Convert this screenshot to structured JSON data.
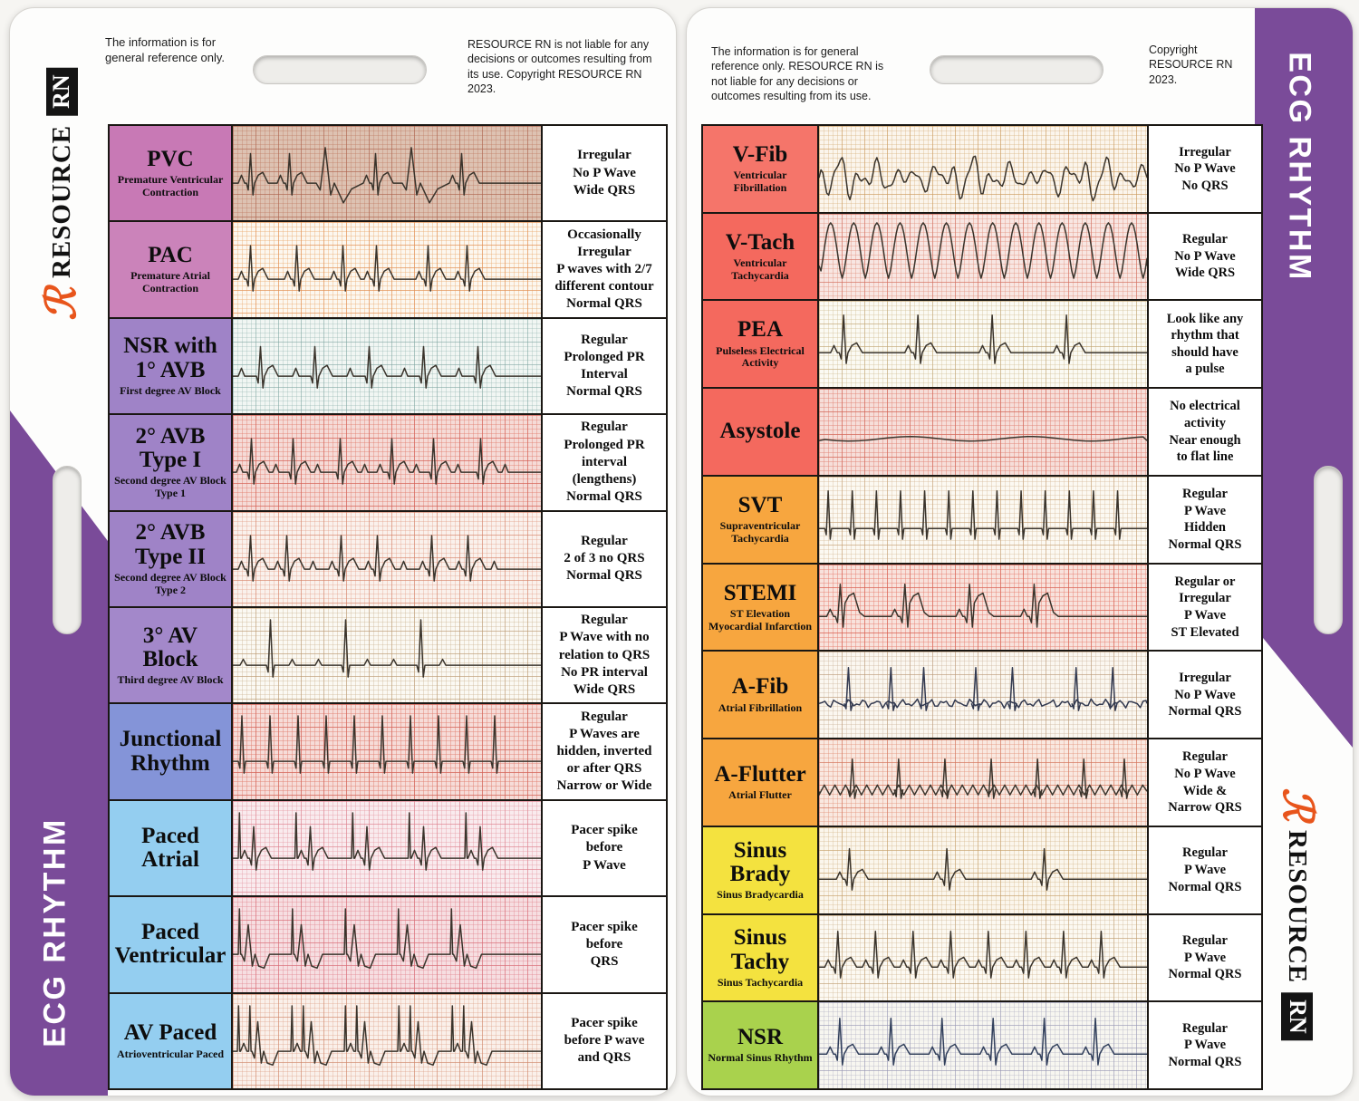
{
  "vertical_label": "ECG RHYTHM",
  "brand": {
    "logo_glyph": "ℛ",
    "name": "RESOURCE",
    "rn": "RN",
    "accent": "#e8551c",
    "purple": "#7a4b99"
  },
  "cards": [
    {
      "side": "left",
      "disclaimer_left": "The information is for general reference only.",
      "disclaimer_right": "RESOURCE RN is not liable for any decisions or outcomes resulting from its use. Copyright RESOURCE RN 2023.",
      "rows": [
        {
          "name": "PVC",
          "sub": "Premature Ventricular Contraction",
          "desc": "Irregular\nNo P Wave\nWide QRS",
          "color": "#c879b5",
          "wave": "pvc",
          "paper": {
            "bg": "#ddc2b2",
            "minor": "rgba(190,120,95,0.35)",
            "major": "rgba(170,95,75,0.5)"
          }
        },
        {
          "name": "PAC",
          "sub": "Premature Atrial Contraction",
          "desc": "Occasionally\nIrregular\nP waves with 2/7\ndifferent contour\nNormal QRS",
          "color": "#cb83ba",
          "wave": "pac",
          "paper": {
            "bg": "#fcf7ef",
            "minor": "rgba(235,170,110,0.4)",
            "major": "rgba(225,140,80,0.55)"
          }
        },
        {
          "name": "NSR with\n1° AVB",
          "sub": "First degree AV Block",
          "desc": "Regular\nProlonged PR\nInterval\nNormal QRS",
          "color": "#9f83c7",
          "wave": "longpr",
          "paper": {
            "bg": "#f1f6f3",
            "minor": "rgba(140,175,170,0.3)",
            "major": "rgba(120,160,155,0.4)"
          }
        },
        {
          "name": "2° AVB\nType I",
          "sub": "Second degree AV Block Type 1",
          "desc": "Regular\nProlonged PR\ninterval\n(lengthens)\nNormal QRS",
          "color": "#9f83c7",
          "wave": "wenck",
          "paper": {
            "bg": "#f5dbd7",
            "minor": "rgba(225,120,105,0.4)",
            "major": "rgba(210,90,80,0.55)"
          }
        },
        {
          "name": "2° AVB\nType II",
          "sub": "Second degree AV Block Type 2",
          "desc": "Regular\n2 of 3 no QRS\nNormal QRS",
          "color": "#9f83c7",
          "wave": "mobitz2",
          "paper": {
            "bg": "#faf1ec",
            "minor": "rgba(225,155,130,0.35)",
            "major": "rgba(210,125,100,0.5)"
          }
        },
        {
          "name": "3° AV\nBlock",
          "sub": "Third degree AV Block",
          "desc": "Regular\nP Wave with no\nrelation to QRS\nNo PR interval\nWide QRS",
          "color": "#a388ca",
          "wave": "chb",
          "paper": {
            "bg": "#fbf9f3",
            "minor": "rgba(200,175,140,0.35)",
            "major": "rgba(185,150,110,0.5)"
          }
        },
        {
          "name": "Junctional\nRhythm",
          "sub": "",
          "desc": "Regular\nP Waves are\nhidden, inverted\nor after QRS\nNarrow or Wide",
          "color": "#8494d8",
          "wave": "junct",
          "paper": {
            "bg": "#f6dcd8",
            "minor": "rgba(225,125,110,0.45)",
            "major": "rgba(210,95,85,0.6)"
          }
        },
        {
          "name": "Paced\nAtrial",
          "sub": "",
          "desc": "Pacer spike\nbefore\nP Wave",
          "color": "#94cef0",
          "wave": "paceda",
          "paper": {
            "bg": "#f9ebee",
            "minor": "rgba(230,155,165,0.4)",
            "major": "rgba(220,125,140,0.5)"
          }
        },
        {
          "name": "Paced\nVentricular",
          "sub": "",
          "desc": "Pacer spike\nbefore\nQRS",
          "color": "#94cef0",
          "wave": "pacedv",
          "paper": {
            "bg": "#f6dee1",
            "minor": "rgba(225,135,145,0.4)",
            "major": "rgba(215,105,115,0.55)"
          }
        },
        {
          "name": "AV Paced",
          "sub": "Atrioventricular Paced",
          "desc": "Pacer spike\nbefore P wave\nand QRS",
          "color": "#94cef0",
          "wave": "pacedav",
          "paper": {
            "bg": "#faf0ea",
            "minor": "rgba(220,160,135,0.35)",
            "major": "rgba(205,130,100,0.5)"
          }
        }
      ]
    },
    {
      "side": "right",
      "disclaimer_left": "The information is for general reference only. RESOURCE RN is not liable for any decisions or outcomes resulting from its use.",
      "disclaimer_right": "Copyright RESOURCE RN 2023.",
      "rows": [
        {
          "name": "V-Fib",
          "sub": "Ventricular Fibrillation",
          "desc": "Irregular\nNo P Wave\nNo QRS",
          "color": "#f5756a",
          "wave": "vfib",
          "paper": {
            "bg": "#fbf5ec",
            "minor": "rgba(215,175,120,0.35)",
            "major": "rgba(200,150,90,0.5)"
          }
        },
        {
          "name": "V-Tach",
          "sub": "Ventricular Tachycardia",
          "desc": "Regular\nNo P Wave\nWide QRS",
          "color": "#f4695e",
          "wave": "vtach",
          "paper": {
            "bg": "#f8e6e2",
            "minor": "rgba(225,145,125,0.4)",
            "major": "rgba(210,110,95,0.55)"
          }
        },
        {
          "name": "PEA",
          "sub": "Pulseless Electrical Activity",
          "desc": "Look like any\nrhythm that\nshould have\na pulse",
          "color": "#f4695e",
          "wave": "pea",
          "paper": {
            "bg": "#fbfaf3",
            "minor": "rgba(205,185,140,0.35)",
            "major": "rgba(190,160,110,0.5)"
          }
        },
        {
          "name": "Asystole",
          "sub": "",
          "desc": "No electrical\nactivity\nNear enough\nto flat line",
          "color": "#f4695e",
          "wave": "asys",
          "paper": {
            "bg": "#f6ded9",
            "minor": "rgba(225,130,115,0.45)",
            "major": "rgba(210,100,85,0.6)"
          }
        },
        {
          "name": "SVT",
          "sub": "Supraventricular Tachycardia",
          "desc": "Regular\nP Wave\nHidden\nNormal QRS",
          "color": "#f7a63f",
          "wave": "svt",
          "paper": {
            "bg": "#fcf9f2",
            "minor": "rgba(210,180,145,0.35)",
            "major": "rgba(195,155,110,0.5)"
          }
        },
        {
          "name": "STEMI",
          "sub": "ST Elevation Myocardial Infarction",
          "desc": "Regular or\nIrregular\nP Wave\nST Elevated",
          "color": "#f7a63f",
          "wave": "stemi",
          "paper": {
            "bg": "#f8e2dc",
            "minor": "rgba(230,125,110,0.45)",
            "major": "rgba(215,95,80,0.6)"
          }
        },
        {
          "name": "A-Fib",
          "sub": "Atrial Fibrillation",
          "desc": "Irregular\nNo P Wave\nNormal QRS",
          "color": "#f7a63f",
          "wave": "afib",
          "paper": {
            "bg": "#fbf7f0",
            "minor": "rgba(200,175,150,0.35)",
            "major": "rgba(185,150,115,0.5)",
            "trace": "#333a50"
          }
        },
        {
          "name": "A-Flutter",
          "sub": "Atrial Flutter",
          "desc": "Regular\nNo P Wave\nWide &\nNarrow QRS",
          "color": "#f7a63f",
          "wave": "aflutter",
          "paper": {
            "bg": "#f9e8e0",
            "minor": "rgba(225,145,120,0.4)",
            "major": "rgba(210,115,90,0.55)"
          }
        },
        {
          "name": "Sinus\nBrady",
          "sub": "Sinus Bradycardia",
          "desc": "Regular\nP Wave\nNormal QRS",
          "color": "#f4e23f",
          "wave": "brady",
          "paper": {
            "bg": "#fbf6ec",
            "minor": "rgba(210,180,135,0.35)",
            "major": "rgba(195,155,100,0.5)"
          }
        },
        {
          "name": "Sinus\nTachy",
          "sub": "Sinus Tachycardia",
          "desc": "Regular\nP Wave\nNormal QRS",
          "color": "#f4e23f",
          "wave": "tachy",
          "paper": {
            "bg": "#fcf9f2",
            "minor": "rgba(205,180,145,0.35)",
            "major": "rgba(190,155,110,0.5)"
          }
        },
        {
          "name": "NSR",
          "sub": "Normal Sinus Rhythm",
          "desc": "Regular\nP Wave\nNormal QRS",
          "color": "#a9d24d",
          "wave": "nsr",
          "paper": {
            "bg": "#f7f6f0",
            "minor": "rgba(175,175,195,0.35)",
            "major": "rgba(150,150,180,0.5)",
            "trace": "#32405c"
          }
        }
      ]
    }
  ]
}
